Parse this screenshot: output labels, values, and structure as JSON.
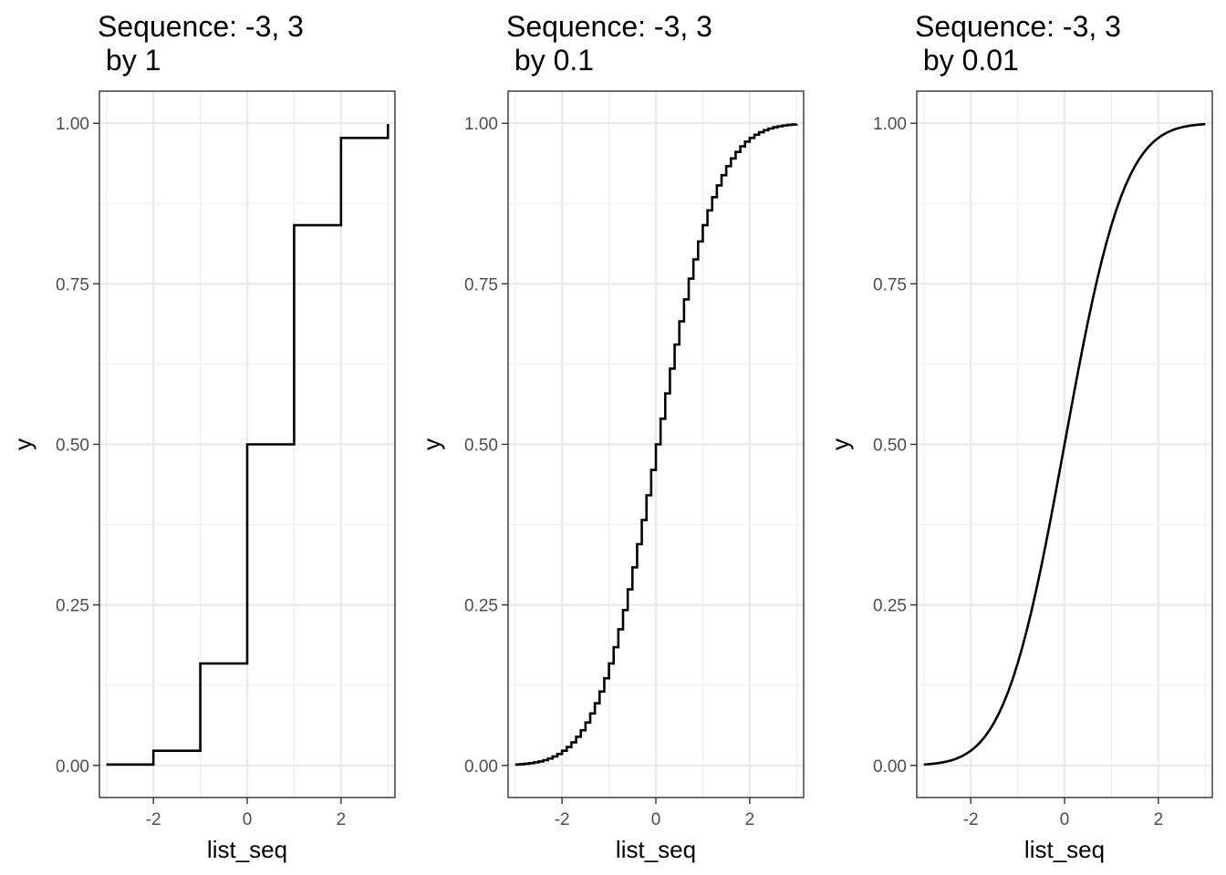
{
  "chart_data": [
    {
      "type": "line",
      "step": true,
      "title": [
        "Sequence: -3, 3",
        " by 1"
      ],
      "xlabel": "list_seq",
      "ylabel": "y",
      "xlim": [
        -3.15,
        3.15
      ],
      "ylim": [
        -0.05,
        1.05
      ],
      "x_ticks": [
        -2,
        0,
        2
      ],
      "x_tick_labels": [
        "-2",
        "0",
        "2"
      ],
      "y_ticks": [
        0,
        0.25,
        0.5,
        0.75,
        1
      ],
      "y_tick_labels": [
        "0.00",
        "0.25",
        "0.50",
        "0.75",
        "1.00"
      ],
      "grid": true,
      "series": [
        {
          "x": [
            -3,
            -2,
            -1,
            0,
            1,
            2,
            3
          ],
          "y": [
            0.0013,
            0.0228,
            0.1587,
            0.5,
            0.8413,
            0.9772,
            0.9987
          ]
        }
      ]
    },
    {
      "type": "line",
      "step": true,
      "title": [
        "Sequence: -3, 3",
        " by 0.1"
      ],
      "xlabel": "list_seq",
      "ylabel": "y",
      "xlim": [
        -3.15,
        3.15
      ],
      "ylim": [
        -0.05,
        1.05
      ],
      "x_ticks": [
        -2,
        0,
        2
      ],
      "x_tick_labels": [
        "-2",
        "0",
        "2"
      ],
      "y_ticks": [
        0,
        0.25,
        0.5,
        0.75,
        1
      ],
      "y_tick_labels": [
        "0.00",
        "0.25",
        "0.50",
        "0.75",
        "1.00"
      ],
      "grid": true,
      "series": [
        {
          "x": [
            -3.0,
            -2.9,
            -2.8,
            -2.7,
            -2.6,
            -2.5,
            -2.4,
            -2.3,
            -2.2,
            -2.1,
            -2.0,
            -1.9,
            -1.8,
            -1.7,
            -1.6,
            -1.5,
            -1.4,
            -1.3,
            -1.2,
            -1.1,
            -1.0,
            -0.9,
            -0.8,
            -0.7,
            -0.6,
            -0.5,
            -0.4,
            -0.3,
            -0.2,
            -0.1,
            0.0,
            0.1,
            0.2,
            0.3,
            0.4,
            0.5,
            0.6,
            0.7,
            0.8,
            0.9,
            1.0,
            1.1,
            1.2,
            1.3,
            1.4,
            1.5,
            1.6,
            1.7,
            1.8,
            1.9,
            2.0,
            2.1,
            2.2,
            2.3,
            2.4,
            2.5,
            2.6,
            2.7,
            2.8,
            2.9,
            3.0
          ],
          "y": [
            0.0013,
            0.0019,
            0.0026,
            0.0035,
            0.0047,
            0.0062,
            0.0082,
            0.0107,
            0.0139,
            0.0179,
            0.0228,
            0.0287,
            0.0359,
            0.0446,
            0.0548,
            0.0668,
            0.0808,
            0.0968,
            0.1151,
            0.1357,
            0.1587,
            0.1841,
            0.2119,
            0.242,
            0.2743,
            0.3085,
            0.3446,
            0.3821,
            0.4207,
            0.4602,
            0.5,
            0.5398,
            0.5793,
            0.6179,
            0.6554,
            0.6915,
            0.7257,
            0.758,
            0.7881,
            0.8159,
            0.8413,
            0.8643,
            0.8849,
            0.9032,
            0.9192,
            0.9332,
            0.9452,
            0.9554,
            0.9641,
            0.9713,
            0.9772,
            0.9821,
            0.9861,
            0.9893,
            0.9918,
            0.9938,
            0.9953,
            0.9965,
            0.9974,
            0.9981,
            0.9987
          ]
        }
      ]
    },
    {
      "type": "line",
      "step": false,
      "title": [
        "Sequence: -3, 3",
        " by 0.01"
      ],
      "xlabel": "list_seq",
      "ylabel": "y",
      "xlim": [
        -3.15,
        3.15
      ],
      "ylim": [
        -0.05,
        1.05
      ],
      "x_ticks": [
        -2,
        0,
        2
      ],
      "x_tick_labels": [
        "-2",
        "0",
        "2"
      ],
      "y_ticks": [
        0,
        0.25,
        0.5,
        0.75,
        1
      ],
      "y_tick_labels": [
        "0.00",
        "0.25",
        "0.50",
        "0.75",
        "1.00"
      ],
      "grid": true,
      "series": [
        {
          "x": [
            -3.0,
            -2.9,
            -2.8,
            -2.7,
            -2.6,
            -2.5,
            -2.4,
            -2.3,
            -2.2,
            -2.1,
            -2.0,
            -1.9,
            -1.8,
            -1.7,
            -1.6,
            -1.5,
            -1.4,
            -1.3,
            -1.2,
            -1.1,
            -1.0,
            -0.9,
            -0.8,
            -0.7,
            -0.6,
            -0.5,
            -0.4,
            -0.3,
            -0.2,
            -0.1,
            0.0,
            0.1,
            0.2,
            0.3,
            0.4,
            0.5,
            0.6,
            0.7,
            0.8,
            0.9,
            1.0,
            1.1,
            1.2,
            1.3,
            1.4,
            1.5,
            1.6,
            1.7,
            1.8,
            1.9,
            2.0,
            2.1,
            2.2,
            2.3,
            2.4,
            2.5,
            2.6,
            2.7,
            2.8,
            2.9,
            3.0
          ],
          "y": [
            0.0013,
            0.0019,
            0.0026,
            0.0035,
            0.0047,
            0.0062,
            0.0082,
            0.0107,
            0.0139,
            0.0179,
            0.0228,
            0.0287,
            0.0359,
            0.0446,
            0.0548,
            0.0668,
            0.0808,
            0.0968,
            0.1151,
            0.1357,
            0.1587,
            0.1841,
            0.2119,
            0.242,
            0.2743,
            0.3085,
            0.3446,
            0.3821,
            0.4207,
            0.4602,
            0.5,
            0.5398,
            0.5793,
            0.6179,
            0.6554,
            0.6915,
            0.7257,
            0.758,
            0.7881,
            0.8159,
            0.8413,
            0.8643,
            0.8849,
            0.9032,
            0.9192,
            0.9332,
            0.9452,
            0.9554,
            0.9641,
            0.9713,
            0.9772,
            0.9821,
            0.9861,
            0.9893,
            0.9918,
            0.9938,
            0.9953,
            0.9965,
            0.9974,
            0.9981,
            0.9987
          ]
        }
      ]
    }
  ]
}
